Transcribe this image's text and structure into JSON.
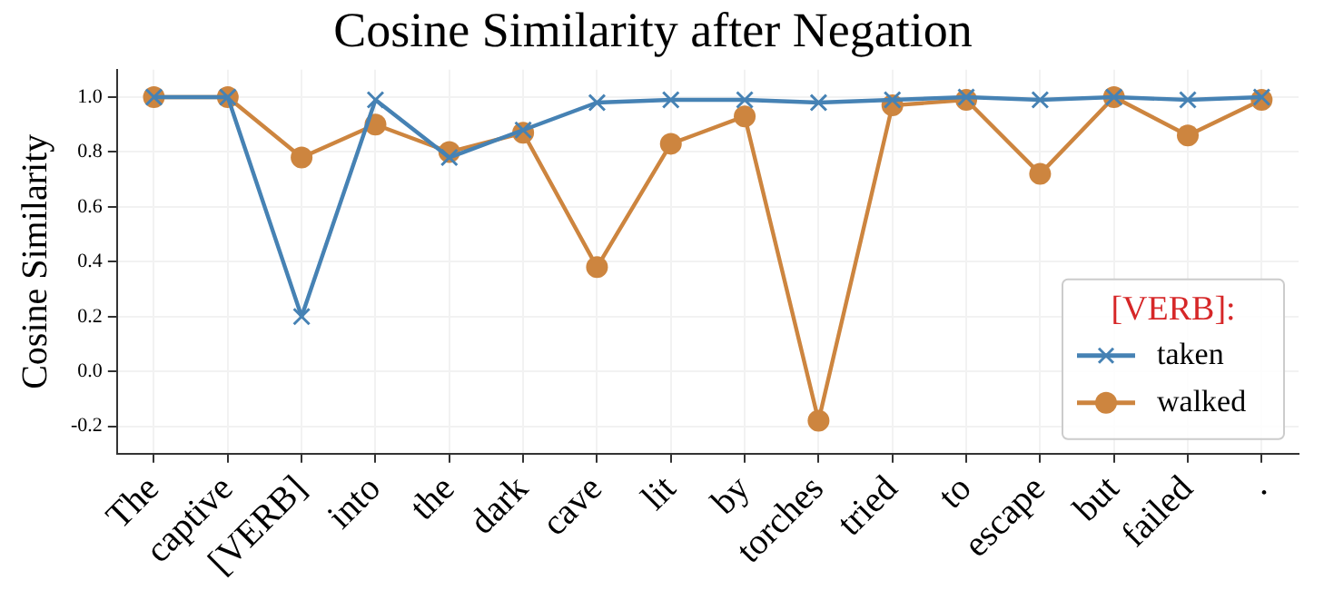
{
  "chart_data": {
    "type": "line",
    "title": "Cosine Similarity after Negation",
    "ylabel": "Cosine Similarity",
    "legend_title": "[VERB]:",
    "categories": [
      "The",
      "captive",
      "[VERB]",
      "into",
      "the",
      "dark",
      "cave",
      "lit",
      "by",
      "torches",
      "tried",
      "to",
      "escape",
      "but",
      "failed",
      "."
    ],
    "series": [
      {
        "name": "taken",
        "color": "#4682b4",
        "marker": "cross",
        "values": [
          1.0,
          1.0,
          0.2,
          0.99,
          0.78,
          0.88,
          0.98,
          0.99,
          0.99,
          0.98,
          0.99,
          1.0,
          0.99,
          1.0,
          0.99,
          1.0
        ]
      },
      {
        "name": "walked",
        "color": "#cd853f",
        "marker": "circle",
        "values": [
          1.0,
          1.0,
          0.78,
          0.9,
          0.8,
          0.87,
          0.38,
          0.83,
          0.93,
          -0.18,
          0.97,
          0.99,
          0.72,
          1.0,
          0.86,
          0.99
        ]
      }
    ],
    "ylim": [
      -0.3,
      1.1
    ],
    "yticks": [
      -0.2,
      {
        "value": 0,
        "label": "0.0"
      },
      0.2,
      0.4,
      0.6,
      0.8,
      {
        "value": 1,
        "label": "1.0"
      }
    ],
    "grid": true,
    "legend": "bottom right",
    "line_style": "solid"
  }
}
